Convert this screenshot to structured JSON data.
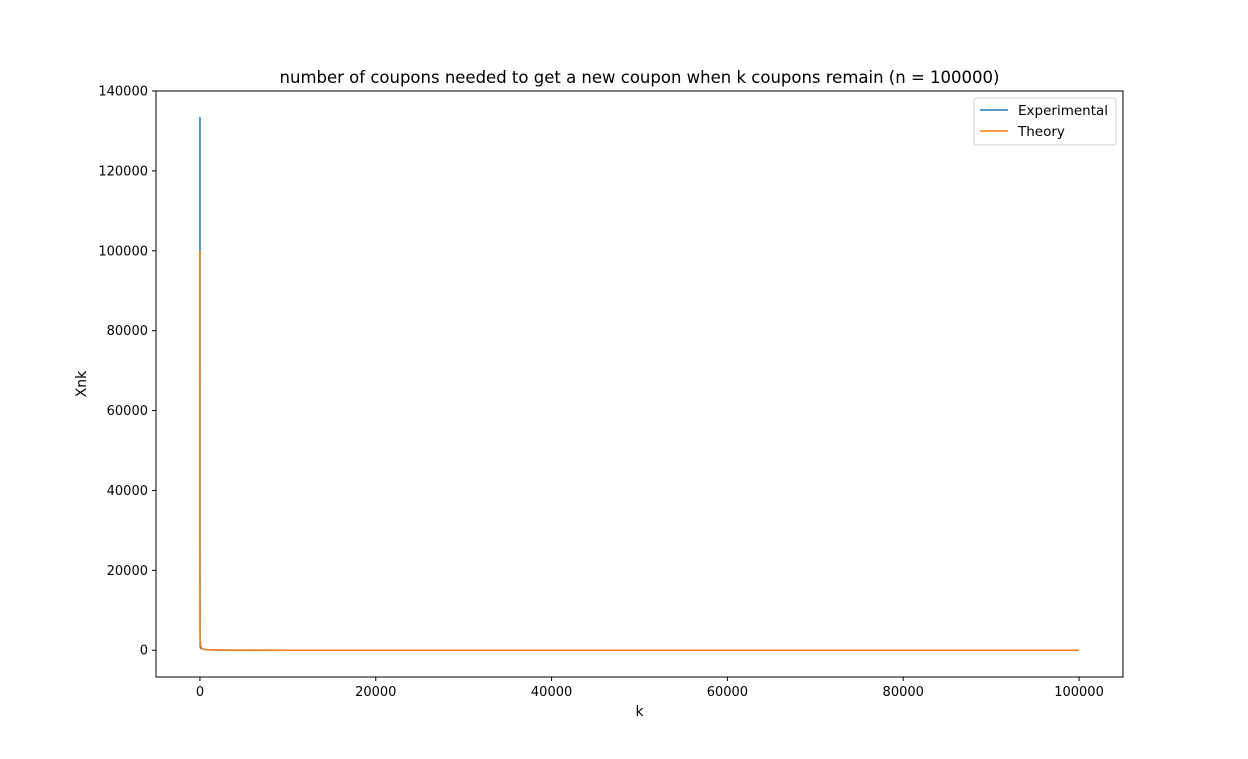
{
  "chart_data": {
    "type": "line",
    "title": "number of coupons needed to get a new coupon when k coupons remain (n = 100000)",
    "xlabel": "k",
    "ylabel": "Xnk",
    "xlim": [
      -5000,
      105000
    ],
    "ylim": [
      -6700,
      140000
    ],
    "xticks": [
      0,
      20000,
      40000,
      60000,
      80000,
      100000
    ],
    "yticks": [
      0,
      20000,
      40000,
      60000,
      80000,
      100000,
      120000,
      140000
    ],
    "xtick_labels": [
      "0",
      "20000",
      "40000",
      "60000",
      "80000",
      "100000"
    ],
    "ytick_labels": [
      "0",
      "20000",
      "40000",
      "60000",
      "80000",
      "100000",
      "120000",
      "140000"
    ],
    "grid": false,
    "legend_position": "top-right",
    "series": [
      {
        "name": "Experimental",
        "color": "#1f77b4",
        "x": [
          1,
          1,
          2,
          2,
          3,
          3,
          5,
          5,
          8,
          8,
          12,
          12,
          20,
          20,
          35,
          35,
          60,
          60,
          100,
          150,
          250,
          400,
          700,
          1200,
          2000,
          3500,
          6000,
          10000,
          20000,
          40000,
          60000,
          80000,
          100000
        ],
        "y": [
          133500,
          40000,
          70000,
          20000,
          45000,
          12000,
          25000,
          8000,
          14000,
          4000,
          8000,
          2500,
          6500,
          1200,
          3000,
          800,
          1500,
          500,
          1000,
          700,
          400,
          250,
          143,
          83,
          50,
          29,
          17,
          10,
          5,
          2.5,
          1.7,
          1.25,
          1
        ]
      },
      {
        "name": "Theory",
        "color": "#ff7f0e",
        "x": [
          1,
          2,
          3,
          5,
          8,
          12,
          20,
          35,
          60,
          100,
          150,
          250,
          400,
          700,
          1200,
          2000,
          3500,
          6000,
          10000,
          20000,
          40000,
          60000,
          80000,
          100000
        ],
        "y": [
          100000,
          50000,
          33333,
          20000,
          12500,
          8333,
          5000,
          2857,
          1667,
          1000,
          667,
          400,
          250,
          143,
          83,
          50,
          29,
          17,
          10,
          5,
          2.5,
          1.7,
          1.25,
          1
        ]
      }
    ]
  }
}
